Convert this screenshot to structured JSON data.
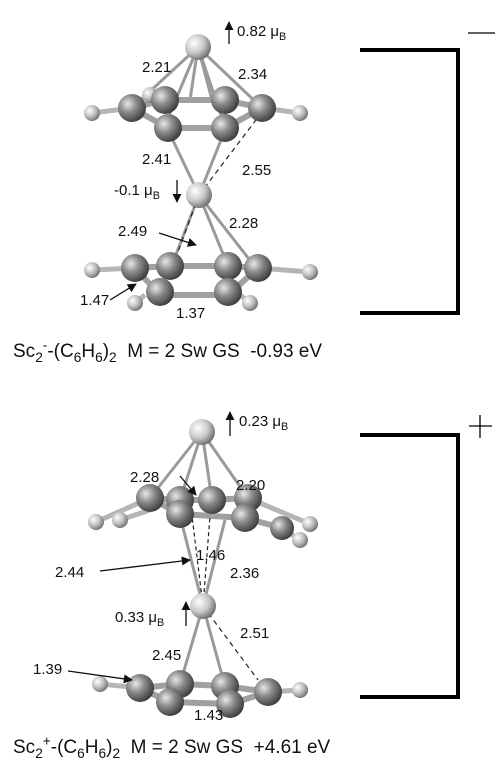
{
  "panels": [
    {
      "charge_sign": "−",
      "mu_top": "0.82 μB",
      "mu_top_value": "0.82",
      "mu_mid_value": "-0.1",
      "unit_mu": "μ",
      "unit_B": "B",
      "bonds": {
        "a": "2.21",
        "b": "2.34",
        "c": "2.41",
        "d": "2.55",
        "e": "2.28",
        "f": "2.49",
        "g": "1.47",
        "h": "1.37"
      },
      "caption": {
        "sc": "Sc",
        "sub1": "2",
        "sup1": "-",
        "open": "-(C",
        "sub2": "6",
        "h": "H",
        "sub3": "6",
        "close": ")",
        "sub4": "2",
        "rest": "  M = 2 Sw GS  -0.93 eV"
      }
    },
    {
      "charge_sign": "+",
      "mu_top_value": "0.23",
      "mu_mid_value": "0.33",
      "unit_mu": "μ",
      "unit_B": "B",
      "bonds": {
        "a": "2.28",
        "b": "2.20",
        "c": "1.46",
        "d": "2.44",
        "e": "2.36",
        "f": "2.51",
        "g": "2.45",
        "h": "1.39",
        "i": "1.43"
      },
      "caption": {
        "sc": "Sc",
        "sub1": "2",
        "sup1": "+",
        "open": "-(C",
        "sub2": "6",
        "h": "H",
        "sub3": "6",
        "close": ")",
        "sub4": "2",
        "rest": "  M = 2 Sw GS  +4.61 eV"
      }
    }
  ],
  "atom_labels": {
    "sc": "Sc",
    "c": "C",
    "h": "H"
  }
}
